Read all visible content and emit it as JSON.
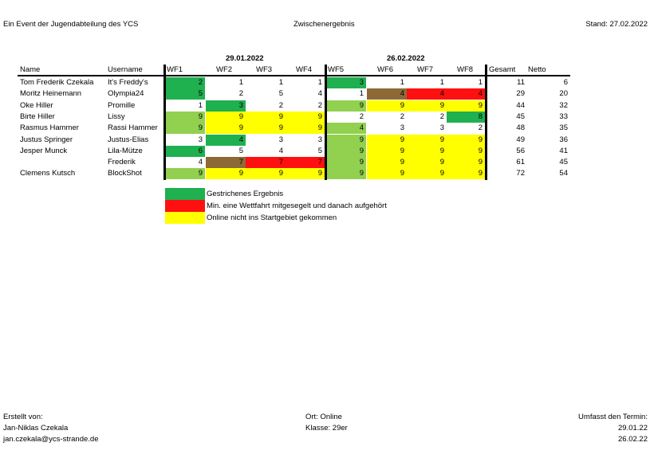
{
  "header": {
    "left": "Ein Event der Jugendabteilung des YCS",
    "center": "Zwischenergebnis",
    "right": "Stand: 27.02.2022"
  },
  "colors": {
    "green_dark": "#1fb050",
    "green_light": "#92d050",
    "brown": "#8d6a35",
    "red": "#ff1010",
    "yellow": "#ffff00",
    "white": "#ffffff"
  },
  "table": {
    "dates": [
      "29.01.2022",
      "26.02.2022"
    ],
    "headers": {
      "name": "Name",
      "username": "Username",
      "races": [
        "WF1",
        "WF2",
        "WF3",
        "WF4",
        "WF5",
        "WF6",
        "WF7",
        "WF8"
      ],
      "gesamt": "Gesamt",
      "netto": "Netto"
    },
    "rows": [
      {
        "name": "Tom Frederik Czekala",
        "username": "It's Freddy's",
        "scores": [
          "2",
          "1",
          "1",
          "1",
          "3",
          "1",
          "1",
          "1"
        ],
        "colors": [
          "green_dark",
          "white",
          "white",
          "white",
          "green_dark",
          "white",
          "white",
          "white"
        ],
        "gesamt": "11",
        "netto": "6"
      },
      {
        "name": "Moritz Heinemann",
        "username": "Olympia24",
        "scores": [
          "5",
          "2",
          "5",
          "4",
          "1",
          "4",
          "4",
          "4"
        ],
        "colors": [
          "green_dark",
          "white",
          "white",
          "white",
          "white",
          "brown",
          "red",
          "red"
        ],
        "gesamt": "29",
        "netto": "20"
      },
      {
        "name": "Oke Hiller",
        "username": "Promille",
        "scores": [
          "1",
          "3",
          "2",
          "2",
          "9",
          "9",
          "9",
          "9"
        ],
        "colors": [
          "white",
          "green_dark",
          "white",
          "white",
          "green_light",
          "yellow",
          "yellow",
          "yellow"
        ],
        "gesamt": "44",
        "netto": "32"
      },
      {
        "name": "Birte Hiller",
        "username": "Lissy",
        "scores": [
          "9",
          "9",
          "9",
          "9",
          "2",
          "2",
          "2",
          "8"
        ],
        "colors": [
          "green_light",
          "yellow",
          "yellow",
          "yellow",
          "white",
          "white",
          "white",
          "green_dark"
        ],
        "gesamt": "45",
        "netto": "33"
      },
      {
        "name": "Rasmus Hammer",
        "username": "Rassi Hammer",
        "scores": [
          "9",
          "9",
          "9",
          "9",
          "4",
          "3",
          "3",
          "2"
        ],
        "colors": [
          "green_light",
          "yellow",
          "yellow",
          "yellow",
          "green_light",
          "white",
          "white",
          "white"
        ],
        "gesamt": "48",
        "netto": "35"
      },
      {
        "name": "Justus Springer",
        "username": "Justus-Elias",
        "scores": [
          "3",
          "4",
          "3",
          "3",
          "9",
          "9",
          "9",
          "9"
        ],
        "colors": [
          "white",
          "green_dark",
          "white",
          "white",
          "green_light",
          "yellow",
          "yellow",
          "yellow"
        ],
        "gesamt": "49",
        "netto": "36"
      },
      {
        "name": "Jesper Munck",
        "username": "Lila-Mütze",
        "scores": [
          "6",
          "5",
          "4",
          "5",
          "9",
          "9",
          "9",
          "9"
        ],
        "colors": [
          "green_dark",
          "white",
          "white",
          "white",
          "green_light",
          "yellow",
          "yellow",
          "yellow"
        ],
        "gesamt": "56",
        "netto": "41"
      },
      {
        "name": "",
        "username": "Frederik",
        "scores": [
          "4",
          "7",
          "7",
          "7",
          "9",
          "9",
          "9",
          "9"
        ],
        "colors": [
          "white",
          "brown",
          "red",
          "red",
          "green_light",
          "yellow",
          "yellow",
          "yellow"
        ],
        "gesamt": "61",
        "netto": "45"
      },
      {
        "name": "Clemens Kutsch",
        "username": "BlockShot",
        "scores": [
          "9",
          "9",
          "9",
          "9",
          "9",
          "9",
          "9",
          "9"
        ],
        "colors": [
          "green_light",
          "yellow",
          "yellow",
          "yellow",
          "green_light",
          "yellow",
          "yellow",
          "yellow"
        ],
        "gesamt": "72",
        "netto": "54"
      }
    ]
  },
  "legend": [
    {
      "color": "green_dark",
      "label": "Gestrichenes Ergebnis"
    },
    {
      "color": "red",
      "label": "Min. eine Wettfahrt mitgesegelt und danach aufgehört"
    },
    {
      "color": "yellow",
      "label": "Online nicht ins Startgebiet gekommen"
    }
  ],
  "footer": {
    "left": [
      "Erstellt von:",
      "Jan-Niklas Czekala",
      "jan.czekala@ycs-strande.de"
    ],
    "center": [
      "Ort: Online",
      "Klasse: 29er"
    ],
    "right": [
      "Umfasst den Termin:",
      "29.01.22",
      "26.02.22"
    ]
  }
}
